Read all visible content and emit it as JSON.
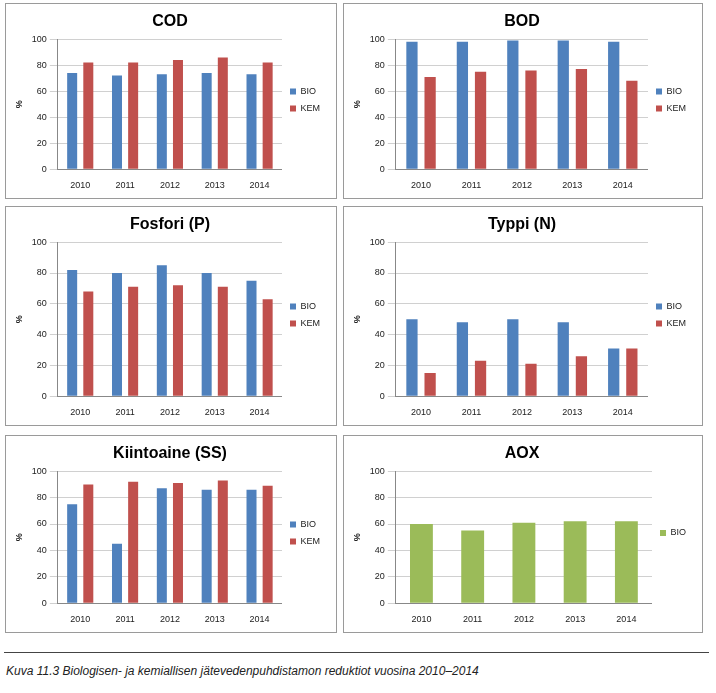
{
  "chart_data": [
    {
      "type": "bar",
      "title": "COD",
      "y_label": "%",
      "categories": [
        "2010",
        "2011",
        "2012",
        "2013",
        "2014"
      ],
      "series": [
        {
          "name": "BIO",
          "color": "#4f81bd",
          "values": [
            74,
            72,
            73,
            74,
            73
          ]
        },
        {
          "name": "KEM",
          "color": "#c0504d",
          "values": [
            82,
            82,
            84,
            86,
            82
          ]
        }
      ],
      "ylim": [
        0,
        100
      ],
      "yticks": [
        0,
        20,
        40,
        60,
        80,
        100
      ],
      "grid": true,
      "legend": "right"
    },
    {
      "type": "bar",
      "title": "BOD",
      "y_label": "%",
      "categories": [
        "2010",
        "2011",
        "2012",
        "2013",
        "2014"
      ],
      "series": [
        {
          "name": "BIO",
          "color": "#4f81bd",
          "values": [
            98,
            98,
            99,
            99,
            98
          ]
        },
        {
          "name": "KEM",
          "color": "#c0504d",
          "values": [
            71,
            75,
            76,
            77,
            68
          ]
        }
      ],
      "ylim": [
        0,
        100
      ],
      "yticks": [
        0,
        20,
        40,
        60,
        80,
        100
      ],
      "grid": true,
      "legend": "right"
    },
    {
      "type": "bar",
      "title": "Fosfori (P)",
      "y_label": "%",
      "categories": [
        "2010",
        "2011",
        "2012",
        "2013",
        "2014"
      ],
      "series": [
        {
          "name": "BIO",
          "color": "#4f81bd",
          "values": [
            82,
            80,
            85,
            80,
            75
          ]
        },
        {
          "name": "KEM",
          "color": "#c0504d",
          "values": [
            68,
            71,
            72,
            71,
            63
          ]
        }
      ],
      "ylim": [
        0,
        100
      ],
      "yticks": [
        0,
        20,
        40,
        60,
        80,
        100
      ],
      "grid": true,
      "legend": "right"
    },
    {
      "type": "bar",
      "title": "Typpi (N)",
      "y_label": "%",
      "categories": [
        "2010",
        "2011",
        "2012",
        "2013",
        "2014"
      ],
      "series": [
        {
          "name": "BIO",
          "color": "#4f81bd",
          "values": [
            50,
            48,
            50,
            48,
            31
          ]
        },
        {
          "name": "KEM",
          "color": "#c0504d",
          "values": [
            15,
            23,
            21,
            26,
            31
          ]
        }
      ],
      "ylim": [
        0,
        100
      ],
      "yticks": [
        0,
        20,
        40,
        60,
        80,
        100
      ],
      "grid": true,
      "legend": "right"
    },
    {
      "type": "bar",
      "title": "Kiintoaine (SS)",
      "y_label": "%",
      "categories": [
        "2010",
        "2011",
        "2012",
        "2013",
        "2014"
      ],
      "series": [
        {
          "name": "BIO",
          "color": "#4f81bd",
          "values": [
            75,
            45,
            87,
            86,
            86
          ]
        },
        {
          "name": "KEM",
          "color": "#c0504d",
          "values": [
            90,
            92,
            91,
            93,
            89
          ]
        }
      ],
      "ylim": [
        0,
        100
      ],
      "yticks": [
        0,
        20,
        40,
        60,
        80,
        100
      ],
      "grid": true,
      "legend": "right"
    },
    {
      "type": "bar",
      "title": "AOX",
      "y_label": "%",
      "categories": [
        "2010",
        "2011",
        "2012",
        "2013",
        "2014"
      ],
      "series": [
        {
          "name": "BIO",
          "color": "#9bbb59",
          "values": [
            60,
            55,
            61,
            62,
            62
          ]
        }
      ],
      "ylim": [
        0,
        100
      ],
      "yticks": [
        0,
        20,
        40,
        60,
        80,
        100
      ],
      "grid": true,
      "legend": "right"
    }
  ],
  "caption": "Kuva 11.3 Biologisen- ja kemiallisen jätevedenpuhdistamon reduktiot vuosina 2010–2014"
}
